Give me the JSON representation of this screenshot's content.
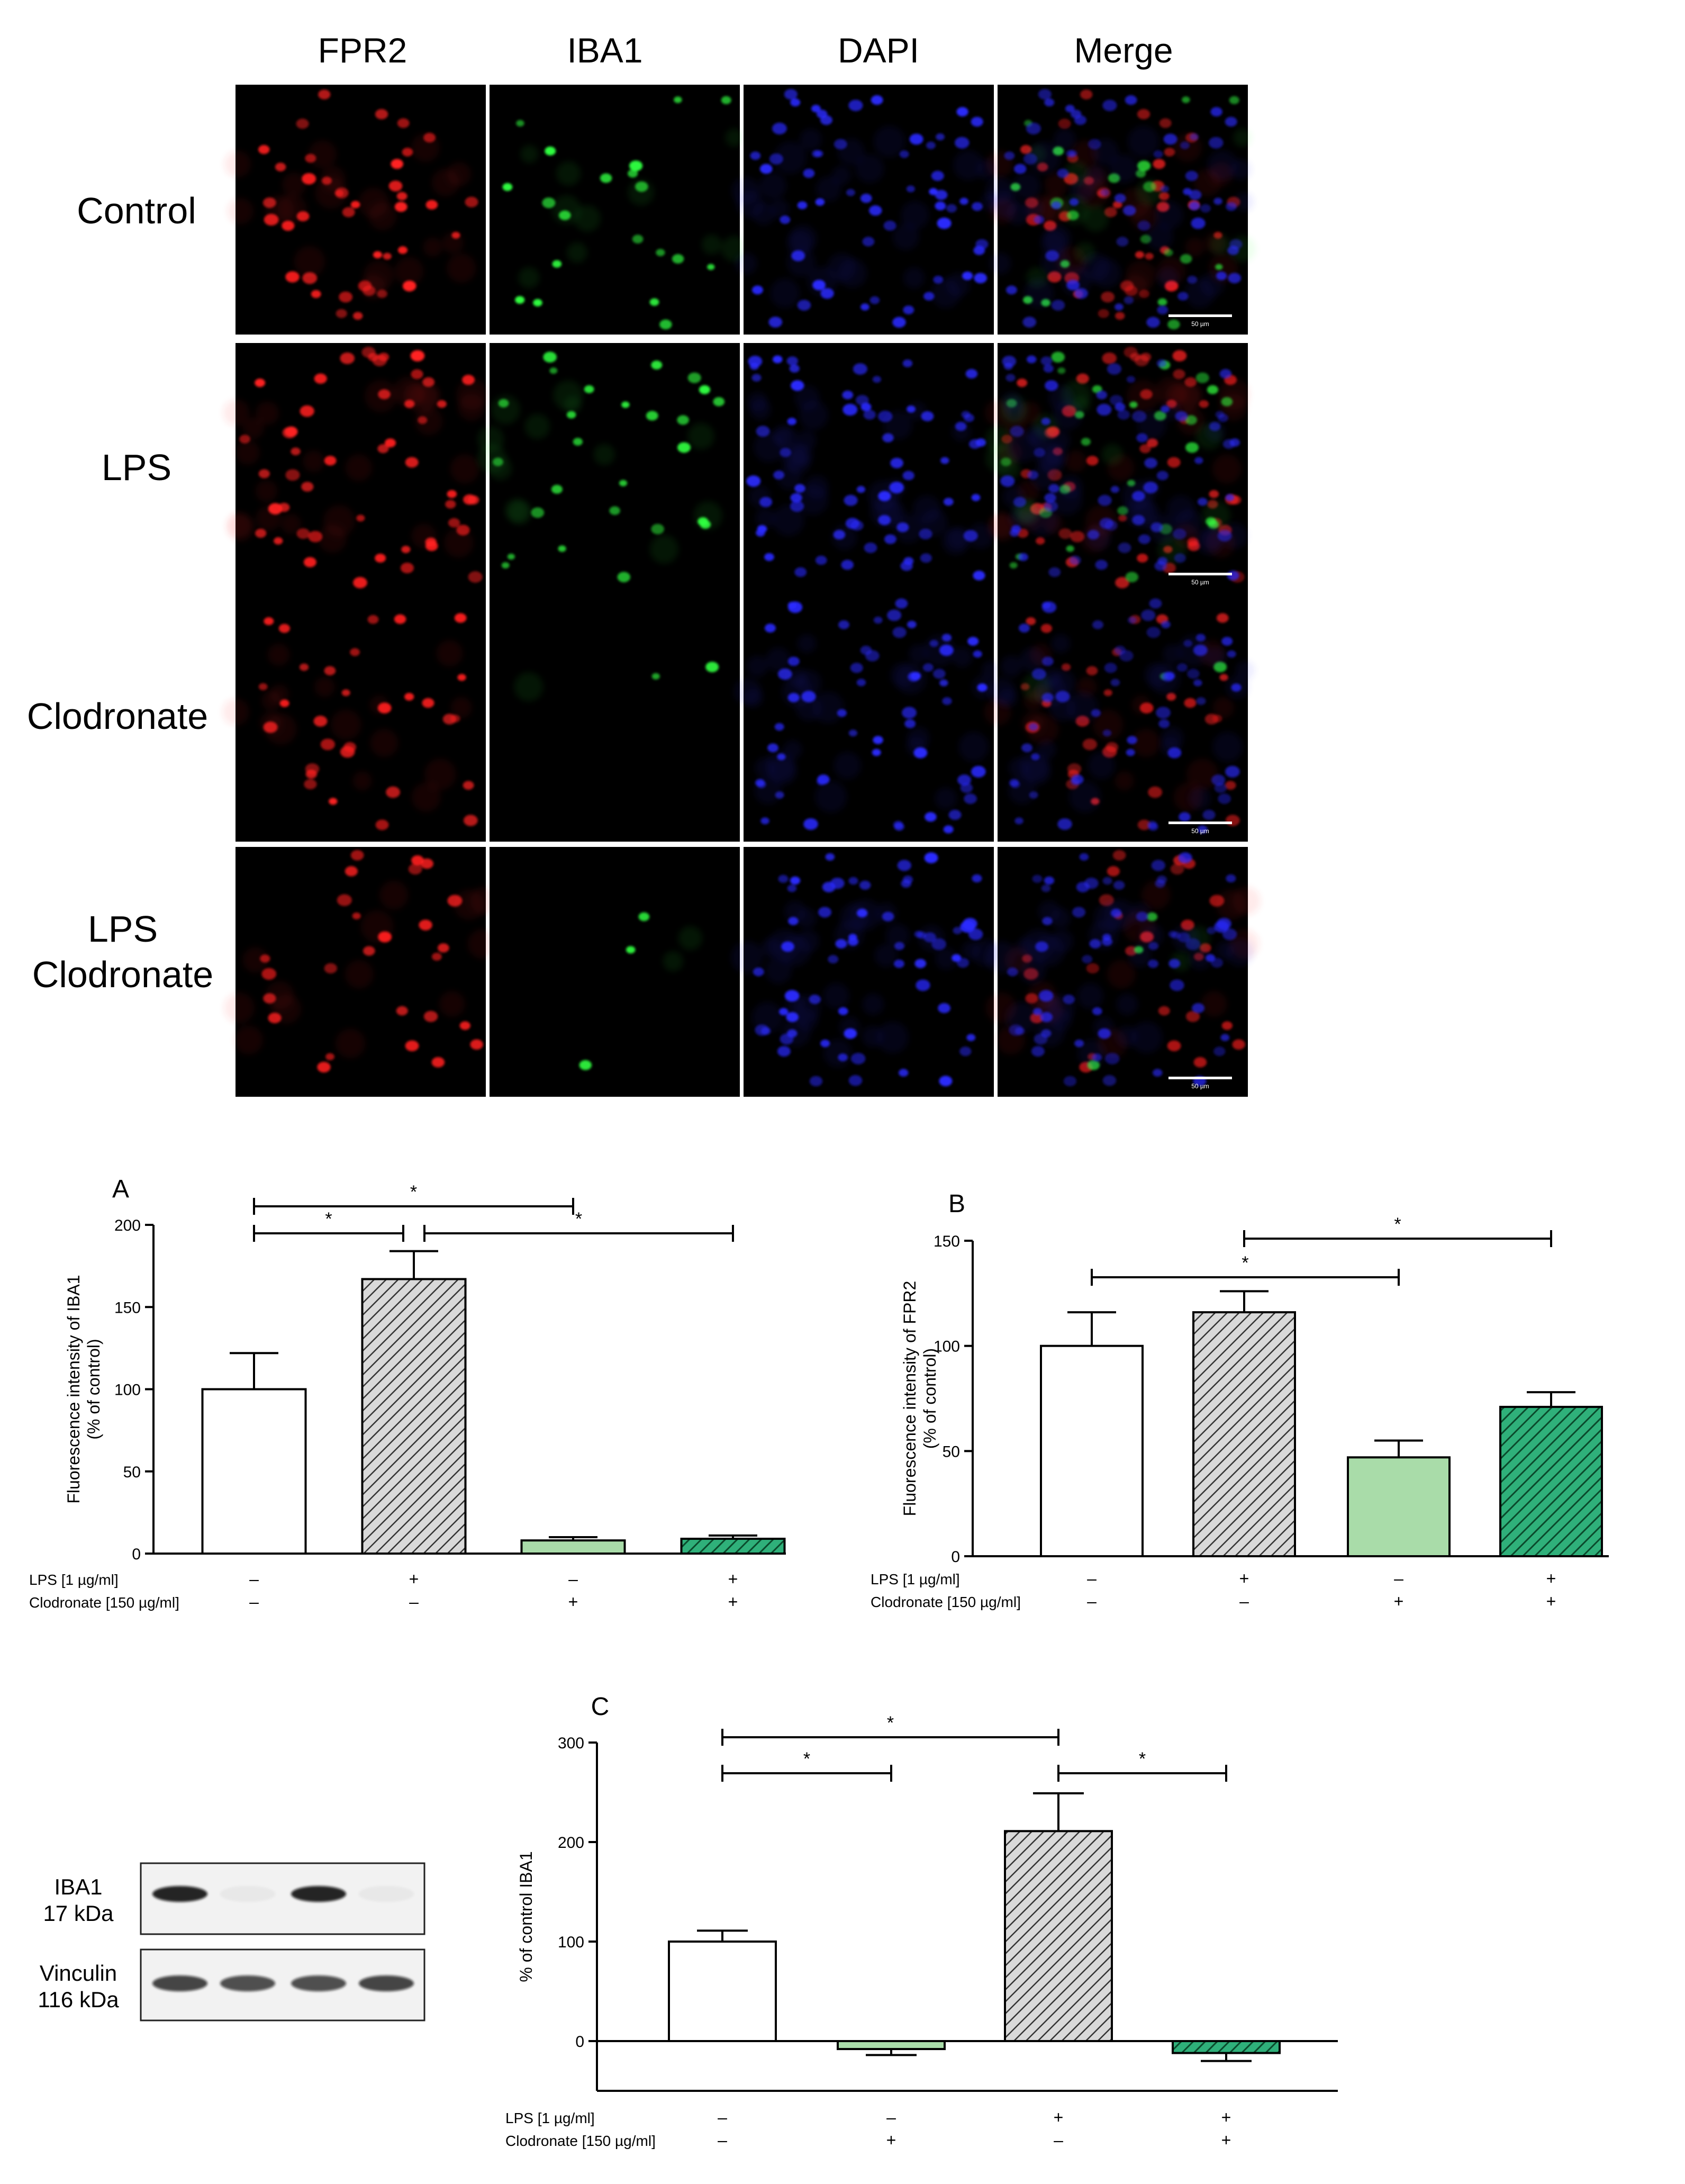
{
  "micrograph": {
    "columns": [
      "FPR2",
      "IBA1",
      "DAPI",
      "Merge"
    ],
    "rows": [
      {
        "lines": [
          "Control"
        ]
      },
      {
        "lines": [
          "LPS"
        ]
      },
      {
        "lines": [
          "Clodronate"
        ]
      },
      {
        "lines": [
          "LPS",
          "Clodronate"
        ]
      }
    ],
    "scale_bar_label": "50 µm"
  },
  "condition_labels": {
    "lps": "LPS [1 µg/ml]",
    "clod": "Clodronate [150 µg/ml]",
    "plus": "+",
    "minus": "–"
  },
  "chart_data": [
    {
      "id": "A",
      "type": "bar",
      "panel_label": "A",
      "ylabel_lines": [
        "Fluorescence intensity of IBA1",
        "(% of control)"
      ],
      "ylim": [
        0,
        200
      ],
      "yticks": [
        0,
        50,
        100,
        150,
        200
      ],
      "categories": [
        {
          "lps": "–",
          "clod": "–"
        },
        {
          "lps": "+",
          "clod": "–"
        },
        {
          "lps": "–",
          "clod": "+"
        },
        {
          "lps": "+",
          "clod": "+"
        }
      ],
      "values": [
        100,
        167,
        8,
        9
      ],
      "errors": [
        22,
        17,
        2,
        2
      ],
      "fills": [
        "white",
        "gray-hatch",
        "lightgreen",
        "green-hatch"
      ],
      "significance": [
        {
          "from": 0,
          "to": 2,
          "label": "*"
        },
        {
          "from": 0,
          "to": 1,
          "label": "*"
        },
        {
          "from": 1,
          "to": 3,
          "label": "*"
        }
      ]
    },
    {
      "id": "B",
      "type": "bar",
      "panel_label": "B",
      "ylabel_lines": [
        "Fluorescence intensity of FPR2",
        "(% of control)"
      ],
      "ylim": [
        0,
        150
      ],
      "yticks": [
        0,
        50,
        100,
        150
      ],
      "categories": [
        {
          "lps": "–",
          "clod": "–"
        },
        {
          "lps": "+",
          "clod": "–"
        },
        {
          "lps": "–",
          "clod": "+"
        },
        {
          "lps": "+",
          "clod": "+"
        }
      ],
      "values": [
        100,
        116,
        47,
        71
      ],
      "errors": [
        16,
        10,
        8,
        7
      ],
      "fills": [
        "white",
        "gray-hatch",
        "lightgreen",
        "green-hatch"
      ],
      "significance": [
        {
          "from": 1,
          "to": 3,
          "label": "*"
        },
        {
          "from": 0,
          "to": 2,
          "label": "*"
        }
      ]
    },
    {
      "id": "C",
      "type": "bar",
      "panel_label": "C",
      "ylabel_lines": [
        "% of control IBA1"
      ],
      "ylim": [
        -50,
        300
      ],
      "yticks": [
        0,
        100,
        200,
        300
      ],
      "categories": [
        {
          "lps": "–",
          "clod": "–"
        },
        {
          "lps": "–",
          "clod": "+"
        },
        {
          "lps": "+",
          "clod": "–"
        },
        {
          "lps": "+",
          "clod": "+"
        }
      ],
      "values": [
        100,
        -8,
        211,
        -12
      ],
      "errors": [
        11,
        6,
        38,
        8
      ],
      "fills": [
        "white",
        "lightgreen",
        "gray-hatch",
        "green-hatch"
      ],
      "significance": [
        {
          "from": 0,
          "to": 2,
          "label": "*"
        },
        {
          "from": 0,
          "to": 1,
          "label": "*"
        },
        {
          "from": 2,
          "to": 3,
          "label": "*"
        }
      ]
    }
  ],
  "western_blot": {
    "bands": [
      {
        "lines": [
          "IBA1",
          "17 kDa"
        ],
        "intensities": [
          1.0,
          0.05,
          1.0,
          0.05
        ]
      },
      {
        "lines": [
          "Vinculin",
          "116 kDa"
        ],
        "intensities": [
          0.85,
          0.8,
          0.8,
          0.85
        ]
      }
    ]
  },
  "colors": {
    "lightgreen": "#a9dca9",
    "green": "#1a8a5a",
    "gray": "#c8c8c8",
    "fpr2": "#ff2020",
    "iba1": "#30ff40",
    "dapi": "#2a2aff"
  }
}
